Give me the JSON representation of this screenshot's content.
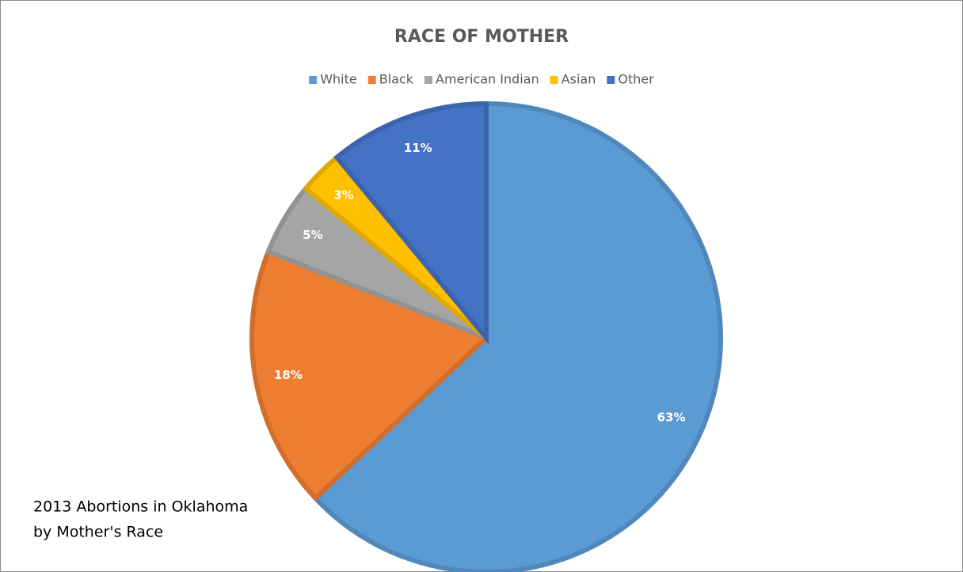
{
  "chart_data": {
    "type": "pie",
    "title": "RACE OF MOTHER",
    "categories": [
      "White",
      "Black",
      "American Indian",
      "Asian",
      "Other"
    ],
    "values": [
      63,
      18,
      5,
      3,
      11
    ],
    "value_labels": [
      "63%",
      "18%",
      "5%",
      "3%",
      "11%"
    ],
    "colors": [
      "#5B9BD5",
      "#ED7D31",
      "#A5A5A5",
      "#FFC000",
      "#4472C4"
    ],
    "legend": "top",
    "annotation": [
      "2013 Abortions in Oklahoma",
      "by Mother's Race"
    ]
  }
}
